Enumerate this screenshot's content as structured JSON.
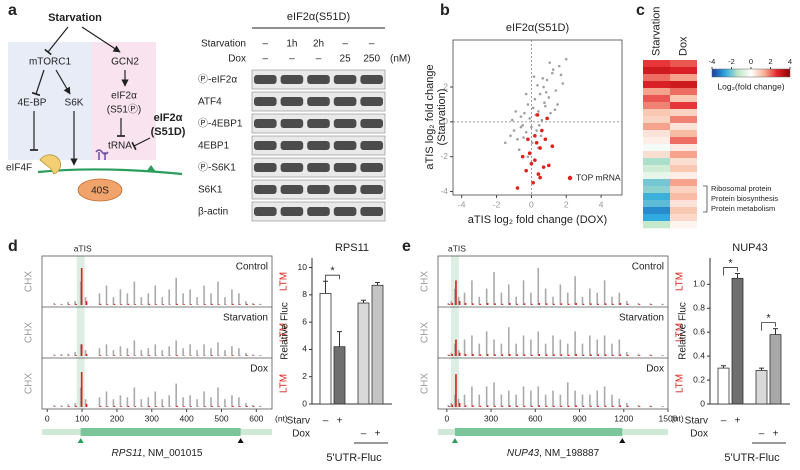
{
  "panel_labels": [
    "a",
    "b",
    "c",
    "d",
    "e"
  ],
  "a": {
    "diagram": {
      "starvation": "Starvation",
      "mtorc1": "mTORC1",
      "gcn2": "GCN2",
      "eb": "4E-BP",
      "s6k": "S6K",
      "eif2a": "eIF2α",
      "s51p": "(S51Ⓟ)",
      "trna": "tRNA",
      "mut1": "eIF2α",
      "mut2": "(S51D)",
      "eif4f": "eIF4F",
      "s40": "40S"
    },
    "blot": {
      "title": "eIF2α(S51D)",
      "row_names": [
        "Starvation",
        "Dox"
      ],
      "starvation_lanes": [
        "–",
        "1h",
        "2h",
        "–",
        "–"
      ],
      "dox_lanes": [
        "–",
        "–",
        "–",
        "25",
        "250"
      ],
      "unit": "(nM)",
      "proteins": [
        "Ⓟ-eIF2α",
        "ATF4",
        "Ⓟ-4EBP1",
        "4EBP1",
        "Ⓟ-S6K1",
        "S6K1",
        "β-actin"
      ]
    }
  },
  "b": {
    "chart_data": {
      "type": "scatter",
      "title": "eIF2α(S51D)",
      "x_label": "aTIS log₂ fold change (DOX)",
      "y_label": "aTIS log₂ fold change",
      "y_label2": "(Starvation)",
      "xlim": [
        -4.5,
        5.2
      ],
      "ylim": [
        -4.2,
        4.7
      ],
      "xticks": [
        -4,
        -2,
        0,
        2,
        4
      ],
      "yticks": [
        -4,
        -2,
        0,
        2
      ],
      "reference_lines": {
        "x": 0,
        "y": 0
      },
      "series": [
        {
          "color": "#a0a0a0",
          "x": [
            -1.5,
            -1.2,
            -1,
            -0.8,
            -0.6,
            -0.5,
            -0.4,
            -0.3,
            -0.2,
            -0.1,
            0,
            0.1,
            0.2,
            0.3,
            0.4,
            0.5,
            0.6,
            0.7,
            0.8,
            0.9,
            1,
            1.1,
            1.2,
            1.4,
            1.6,
            1.8,
            2,
            -0.9,
            -0.7,
            -0.3,
            0.05,
            0.35,
            0.55,
            0.75,
            0.95,
            1.25,
            1.5,
            -1.1,
            -0.45,
            0.15,
            0.45,
            0.85,
            1.05,
            1.35,
            -0.2,
            0.25,
            0.65,
            -0.6,
            0.4,
            1.7
          ],
          "y": [
            -1.2,
            -0.8,
            -0.5,
            -1,
            0.3,
            -0.2,
            0.5,
            -0.6,
            1,
            0.2,
            -0.3,
            0.8,
            1.3,
            -0.5,
            0.6,
            1.6,
            0.1,
            2,
            0.9,
            2.4,
            1.4,
            0.5,
            2.8,
            1.8,
            3.2,
            2.2,
            3.6,
            0.6,
            -1.6,
            1.6,
            -1.2,
            2.1,
            -0.8,
            1.1,
            0.2,
            3,
            1,
            0.1,
            -0.9,
            2.6,
            -0.2,
            1.7,
            3.4,
            0.7,
            -2,
            0.4,
            2.5,
            -0.3,
            -1.5,
            2.7
          ]
        },
        {
          "name": "TOP mRNA",
          "color": "#e0201b",
          "x": [
            0.2,
            0.5,
            -0.3,
            0.8,
            0.1,
            0.6,
            -0.5,
            0.3,
            1,
            0.4,
            -0.1,
            0.7,
            0.9,
            -0.8,
            0.2,
            1.2,
            0,
            0.5,
            0.35,
            -0.2
          ],
          "y": [
            -2.2,
            -1.5,
            -2.8,
            -1,
            -3.5,
            -0.5,
            -2,
            -1.2,
            -2.5,
            -3,
            -1.8,
            -2.6,
            0.2,
            -3.8,
            -0.8,
            -1.4,
            -2.4,
            -3.2,
            0.4,
            -1
          ]
        }
      ]
    }
  },
  "c": {
    "chart_data": {
      "type": "heatmap",
      "columns": [
        "Starvation",
        "Dox"
      ],
      "values": [
        [
          2.5,
          3,
          2,
          2.8,
          1.5,
          2.2,
          1.8,
          1,
          0.8,
          1.5,
          0.5,
          0.3,
          -0.2,
          0.6,
          -1.5,
          -1,
          -0.5,
          -2,
          -1.8,
          -2.5,
          -2.2,
          -3,
          -2.6,
          -1.2
        ],
        [
          2.2,
          2.8,
          1.5,
          3,
          2,
          1,
          2.5,
          0.8,
          1.8,
          0.5,
          1.2,
          2,
          0.4,
          1.5,
          0.6,
          1,
          0.3,
          1.5,
          0.8,
          1.2,
          0.5,
          1,
          0.7,
          0.2
        ]
      ],
      "clim": [
        -4,
        4
      ],
      "colorbar_ticks": [
        -4,
        -2,
        0,
        2,
        4
      ],
      "colorbar_label": "Log₂(fold change)",
      "colormap": [
        "#1f3b99",
        "#2aa7de",
        "#bfe7c8",
        "#ffffff",
        "#f7b59a",
        "#e3242b",
        "#8b0000"
      ],
      "annotations": [
        "Ribosomal protein",
        "Protein biosynthesis",
        "Protein metabolism"
      ]
    }
  },
  "d": {
    "trace": {
      "xlim": [
        -15,
        645
      ],
      "xticks": [
        0,
        100,
        200,
        300,
        400,
        500,
        600
      ],
      "x_unit": "(nt)",
      "left_label": "CHX",
      "right_label": "LTM",
      "atis_label": "aTIS",
      "atis": 96,
      "cds": [
        96,
        555
      ],
      "gene": "RPS11",
      "accession": ", NM_001015",
      "positions": [
        20,
        40,
        60,
        80,
        96,
        110,
        150,
        170,
        190,
        210,
        230,
        250,
        270,
        290,
        310,
        330,
        350,
        370,
        390,
        410,
        430,
        450,
        470,
        490,
        510,
        530,
        550,
        570,
        590,
        610
      ],
      "rows": [
        {
          "name": "Control",
          "gray": [
            0.5,
            0.3,
            0.8,
            1,
            6,
            2,
            3,
            5,
            2,
            4,
            3,
            6,
            2,
            3,
            5,
            2,
            4,
            7,
            3,
            4,
            2,
            5,
            3,
            6,
            2,
            4,
            3,
            1,
            0.5,
            0.3
          ],
          "red": [
            0.1,
            0.1,
            0.2,
            0.3,
            9.5,
            1,
            0.3,
            0.2,
            0.3,
            0.2,
            0.3,
            0.2,
            0.1,
            0.3,
            0.2,
            0.2,
            0.1,
            0.3,
            0.2,
            0.2,
            0.1,
            0.2,
            0.3,
            0.2,
            0.1,
            0.3,
            0.2,
            0.3,
            0.2,
            0.1
          ]
        },
        {
          "name": "Starvation",
          "gray": [
            0.4,
            0.5,
            0.6,
            1,
            3,
            1.5,
            2,
            3,
            1.5,
            2.5,
            2,
            4,
            1.5,
            2,
            3,
            1.5,
            2.5,
            4,
            2,
            3,
            1.5,
            3,
            2,
            3.5,
            1.5,
            2.5,
            2,
            0.8,
            0.4,
            0.2
          ],
          "red": [
            0.1,
            0.1,
            0.1,
            0.2,
            3,
            0.5,
            0.2,
            0.1,
            0.2,
            0.1,
            0.2,
            0.1,
            0.1,
            0.2,
            0.1,
            0.1,
            0.1,
            0.2,
            0.1,
            0.1,
            0.1,
            0.1,
            0.2,
            0.1,
            0.1,
            0.2,
            0.1,
            0.2,
            0.1,
            0.1
          ]
        },
        {
          "name": "Dox",
          "gray": [
            0.5,
            0.4,
            0.7,
            1,
            5,
            2,
            2.5,
            4,
            2,
            3,
            2.5,
            5,
            2,
            2.5,
            4,
            2,
            3,
            6,
            2.5,
            3,
            2,
            4,
            2.5,
            5,
            2,
            3,
            2.5,
            1,
            0.5,
            0.3
          ],
          "red": [
            0.1,
            0.1,
            0.2,
            0.3,
            9,
            0.8,
            0.3,
            0.2,
            0.3,
            0.2,
            0.3,
            0.2,
            0.1,
            0.3,
            0.2,
            0.2,
            0.1,
            0.3,
            0.2,
            0.2,
            0.1,
            0.2,
            0.3,
            0.2,
            0.1,
            0.3,
            0.2,
            0.3,
            0.2,
            0.1
          ]
        }
      ]
    },
    "bars": {
      "title": "RPS11",
      "y_label": "Relative Fluc",
      "ylim": [
        0,
        10.7
      ],
      "yticks": [
        0,
        2,
        4,
        6,
        8,
        10
      ],
      "values": [
        8.1,
        4.2,
        7.4,
        8.7
      ],
      "errors": [
        0.9,
        1.1,
        0.2,
        0.2
      ],
      "colors": [
        "#ffffff",
        "#6f6f6f",
        "#d9d9d9",
        "#c4c4c4"
      ],
      "row_names": [
        "Starv",
        "Dox"
      ],
      "starv": [
        "–",
        "+",
        null,
        null
      ],
      "dox": [
        null,
        null,
        "–",
        "+"
      ],
      "group_label": "5'UTR-Fluc",
      "significance": [
        "*"
      ]
    }
  },
  "e": {
    "trace": {
      "xlim": [
        -60,
        1500
      ],
      "xticks": [
        0,
        300,
        600,
        900,
        1200,
        1500
      ],
      "x_unit": "(nt)",
      "left_label": "CHX",
      "right_label": "LTM",
      "atis_label": "aTIS",
      "atis": 55,
      "cds": [
        55,
        1190
      ],
      "gene": "NUP43",
      "accession": ", NM_198887",
      "positions": [
        10,
        30,
        55,
        80,
        120,
        170,
        220,
        270,
        320,
        370,
        420,
        470,
        520,
        570,
        620,
        670,
        720,
        770,
        820,
        870,
        920,
        970,
        1020,
        1070,
        1120,
        1170,
        1220,
        1300,
        1380,
        1460
      ],
      "rows": [
        {
          "name": "Control",
          "gray": [
            0.5,
            1,
            4,
            2,
            3,
            6,
            2,
            4,
            8,
            3,
            5,
            2,
            6,
            3,
            9,
            4,
            2,
            5,
            3,
            7,
            2,
            4,
            3,
            6,
            2,
            3,
            1,
            0.5,
            0.4,
            0.3
          ],
          "red": [
            0.2,
            0.5,
            6,
            1,
            0.5,
            0.4,
            0.3,
            0.5,
            0.4,
            0.3,
            0.5,
            0.3,
            0.4,
            0.3,
            0.5,
            0.4,
            0.3,
            0.4,
            0.3,
            0.5,
            0.3,
            0.4,
            0.3,
            0.4,
            0.3,
            0.5,
            0.3,
            0.2,
            0.2,
            0.1
          ]
        },
        {
          "name": "Starvation",
          "gray": [
            0.4,
            0.8,
            3,
            1.5,
            4,
            5,
            3,
            6,
            4,
            3,
            7,
            3,
            5,
            4,
            6,
            3,
            5,
            4,
            3,
            6,
            3,
            5,
            4,
            5,
            3,
            4,
            1,
            0.5,
            0.4,
            0.2
          ],
          "red": [
            0.2,
            0.5,
            4,
            0.8,
            0.5,
            0.5,
            0.4,
            0.5,
            0.4,
            0.4,
            0.5,
            0.4,
            0.4,
            0.3,
            0.5,
            0.4,
            0.4,
            0.4,
            0.3,
            0.5,
            0.3,
            0.4,
            0.4,
            0.4,
            0.3,
            0.4,
            0.3,
            0.2,
            0.2,
            0.1
          ]
        },
        {
          "name": "Dox",
          "gray": [
            0.5,
            1,
            3,
            2,
            3,
            5,
            3,
            5,
            6,
            3,
            4,
            3,
            5,
            4,
            5,
            3,
            4,
            3,
            6,
            4,
            3,
            3,
            4,
            5,
            3,
            2,
            1,
            0.5,
            0.4,
            0.2
          ],
          "red": [
            0.2,
            0.6,
            8,
            1,
            0.4,
            0.4,
            0.3,
            0.4,
            0.3,
            0.3,
            0.4,
            0.3,
            0.3,
            0.3,
            0.4,
            0.3,
            0.3,
            0.3,
            0.3,
            0.4,
            0.3,
            0.3,
            0.3,
            0.3,
            0.3,
            0.4,
            0.3,
            0.2,
            0.2,
            0.1
          ]
        }
      ]
    },
    "bars": {
      "title": "NUP43",
      "y_label": "Relative Fluc",
      "ylim": [
        0,
        1.22
      ],
      "yticks": [
        0,
        0.2,
        0.4,
        0.6,
        0.8,
        {
          "value": 1,
          "label": "1.0"
        }
      ],
      "values": [
        0.3,
        1.05,
        0.28,
        0.58
      ],
      "errors": [
        0.02,
        0.04,
        0.02,
        0.05
      ],
      "colors": [
        "#ffffff",
        "#6f6f6f",
        "#d9d9d9",
        "#a8a8a8"
      ],
      "row_names": [
        "Starv",
        "Dox"
      ],
      "starv": [
        "–",
        "+",
        null,
        null
      ],
      "dox": [
        null,
        null,
        "–",
        "+"
      ],
      "group_label": "5'UTR-Fluc",
      "significance": [
        "*",
        "*"
      ]
    }
  }
}
